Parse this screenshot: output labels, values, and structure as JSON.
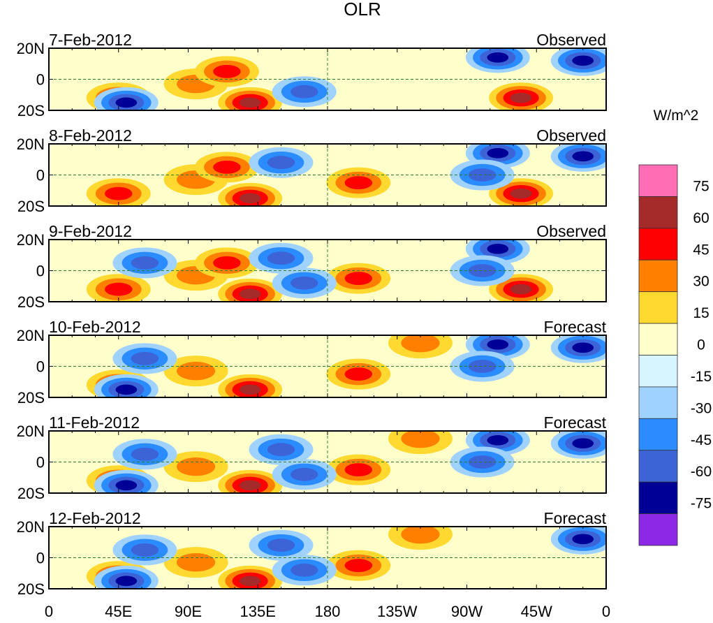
{
  "chart_data": {
    "type": "heatmap",
    "title": "OLR",
    "units_label": "W/m^2",
    "x_ticks": [
      "0",
      "45E",
      "90E",
      "135E",
      "180",
      "135W",
      "90W",
      "45W",
      "0"
    ],
    "x_values_deg_east": [
      0,
      45,
      90,
      135,
      180,
      225,
      270,
      315,
      360
    ],
    "y_ticks": [
      "20N",
      "0",
      "20S"
    ],
    "y_values_deg": [
      20,
      0,
      -20
    ],
    "xlim": [
      0,
      360
    ],
    "ylim": [
      -20,
      20
    ],
    "colorbar": {
      "labels": [
        "75",
        "60",
        "45",
        "30",
        "15",
        "0",
        "-15",
        "-30",
        "-45",
        "-60",
        "-75"
      ],
      "levels": [
        75,
        60,
        45,
        30,
        15,
        0,
        -15,
        -30,
        -45,
        -60,
        -75
      ],
      "colors": [
        "#ff6eb4",
        "#a52a2a",
        "#ff0000",
        "#ff7f00",
        "#ffd92f",
        "#ffffcc",
        "#d7f5ff",
        "#a0d2ff",
        "#2a8cff",
        "#3c64d7",
        "#000096",
        "#8c28e6"
      ]
    },
    "panels": [
      {
        "date": "7-Feb-2012",
        "kind": "Observed"
      },
      {
        "date": "8-Feb-2012",
        "kind": "Observed"
      },
      {
        "date": "9-Feb-2012",
        "kind": "Observed"
      },
      {
        "date": "10-Feb-2012",
        "kind": "Forecast"
      },
      {
        "date": "11-Feb-2012",
        "kind": "Forecast"
      },
      {
        "date": "12-Feb-2012",
        "kind": "Forecast"
      }
    ],
    "anomaly_features": [
      {
        "lon": 45,
        "lat": -12,
        "value": 55,
        "panels": [
          0,
          1,
          2,
          3,
          4,
          5
        ]
      },
      {
        "lon": 95,
        "lat": -3,
        "value": 40,
        "panels": [
          0,
          1,
          2,
          3,
          4,
          5
        ]
      },
      {
        "lon": 130,
        "lat": -15,
        "value": 70,
        "panels": [
          0,
          1,
          2,
          3,
          4,
          5
        ]
      },
      {
        "lon": 115,
        "lat": 5,
        "value": 45,
        "panels": [
          0,
          1,
          2
        ]
      },
      {
        "lon": 200,
        "lat": -5,
        "value": 45,
        "panels": [
          1,
          2,
          3,
          4,
          5
        ]
      },
      {
        "lon": 305,
        "lat": -12,
        "value": 60,
        "panels": [
          0,
          1,
          2
        ]
      },
      {
        "lon": 240,
        "lat": 15,
        "value": 35,
        "panels": [
          3,
          4,
          5
        ]
      },
      {
        "lon": 290,
        "lat": 14,
        "value": -70,
        "panels": [
          0,
          1,
          2,
          3,
          4
        ]
      },
      {
        "lon": 345,
        "lat": 12,
        "value": -60,
        "panels": [
          0,
          1,
          3,
          4,
          5
        ]
      },
      {
        "lon": 62,
        "lat": 5,
        "value": -55,
        "panels": [
          2,
          3,
          4,
          5
        ]
      },
      {
        "lon": 165,
        "lat": -8,
        "value": -50,
        "panels": [
          0,
          2,
          4,
          5
        ]
      },
      {
        "lon": 150,
        "lat": 8,
        "value": -45,
        "panels": [
          1,
          2,
          4,
          5
        ]
      },
      {
        "lon": 280,
        "lat": 0,
        "value": -55,
        "panels": [
          1,
          2,
          3,
          4
        ]
      },
      {
        "lon": 50,
        "lat": -15,
        "value": -60,
        "panels": [
          0,
          3,
          4,
          5
        ]
      }
    ]
  }
}
